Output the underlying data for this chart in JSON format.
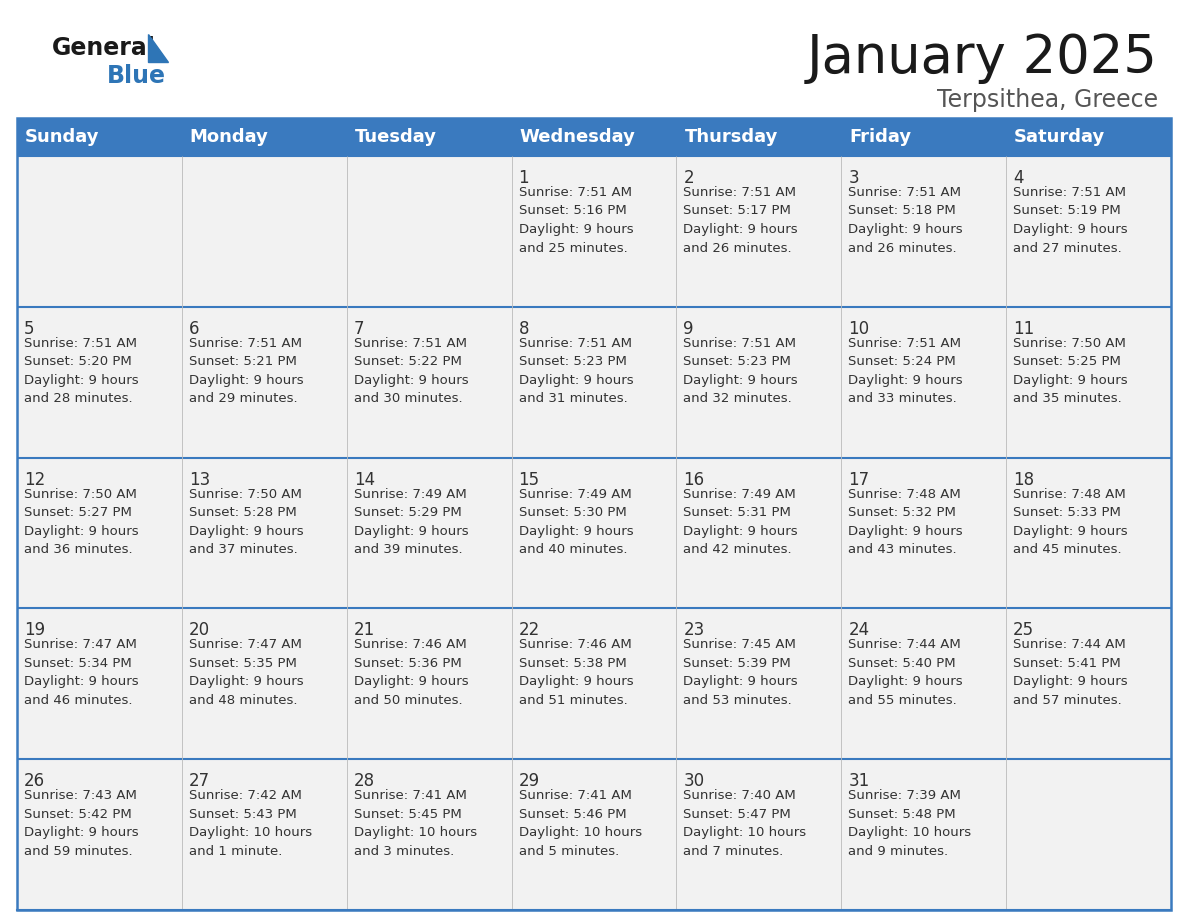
{
  "title": "January 2025",
  "subtitle": "Terpsithea, Greece",
  "header_bg_color": "#3A7ABF",
  "header_text_color": "#FFFFFF",
  "row_bg_color": "#F2F2F2",
  "border_color": "#3A7ABF",
  "border_color_thin": "#AAAAAA",
  "text_color": "#333333",
  "days_of_week": [
    "Sunday",
    "Monday",
    "Tuesday",
    "Wednesday",
    "Thursday",
    "Friday",
    "Saturday"
  ],
  "calendar_data": [
    [
      "",
      "",
      "",
      "1\nSunrise: 7:51 AM\nSunset: 5:16 PM\nDaylight: 9 hours\nand 25 minutes.",
      "2\nSunrise: 7:51 AM\nSunset: 5:17 PM\nDaylight: 9 hours\nand 26 minutes.",
      "3\nSunrise: 7:51 AM\nSunset: 5:18 PM\nDaylight: 9 hours\nand 26 minutes.",
      "4\nSunrise: 7:51 AM\nSunset: 5:19 PM\nDaylight: 9 hours\nand 27 minutes."
    ],
    [
      "5\nSunrise: 7:51 AM\nSunset: 5:20 PM\nDaylight: 9 hours\nand 28 minutes.",
      "6\nSunrise: 7:51 AM\nSunset: 5:21 PM\nDaylight: 9 hours\nand 29 minutes.",
      "7\nSunrise: 7:51 AM\nSunset: 5:22 PM\nDaylight: 9 hours\nand 30 minutes.",
      "8\nSunrise: 7:51 AM\nSunset: 5:23 PM\nDaylight: 9 hours\nand 31 minutes.",
      "9\nSunrise: 7:51 AM\nSunset: 5:23 PM\nDaylight: 9 hours\nand 32 minutes.",
      "10\nSunrise: 7:51 AM\nSunset: 5:24 PM\nDaylight: 9 hours\nand 33 minutes.",
      "11\nSunrise: 7:50 AM\nSunset: 5:25 PM\nDaylight: 9 hours\nand 35 minutes."
    ],
    [
      "12\nSunrise: 7:50 AM\nSunset: 5:27 PM\nDaylight: 9 hours\nand 36 minutes.",
      "13\nSunrise: 7:50 AM\nSunset: 5:28 PM\nDaylight: 9 hours\nand 37 minutes.",
      "14\nSunrise: 7:49 AM\nSunset: 5:29 PM\nDaylight: 9 hours\nand 39 minutes.",
      "15\nSunrise: 7:49 AM\nSunset: 5:30 PM\nDaylight: 9 hours\nand 40 minutes.",
      "16\nSunrise: 7:49 AM\nSunset: 5:31 PM\nDaylight: 9 hours\nand 42 minutes.",
      "17\nSunrise: 7:48 AM\nSunset: 5:32 PM\nDaylight: 9 hours\nand 43 minutes.",
      "18\nSunrise: 7:48 AM\nSunset: 5:33 PM\nDaylight: 9 hours\nand 45 minutes."
    ],
    [
      "19\nSunrise: 7:47 AM\nSunset: 5:34 PM\nDaylight: 9 hours\nand 46 minutes.",
      "20\nSunrise: 7:47 AM\nSunset: 5:35 PM\nDaylight: 9 hours\nand 48 minutes.",
      "21\nSunrise: 7:46 AM\nSunset: 5:36 PM\nDaylight: 9 hours\nand 50 minutes.",
      "22\nSunrise: 7:46 AM\nSunset: 5:38 PM\nDaylight: 9 hours\nand 51 minutes.",
      "23\nSunrise: 7:45 AM\nSunset: 5:39 PM\nDaylight: 9 hours\nand 53 minutes.",
      "24\nSunrise: 7:44 AM\nSunset: 5:40 PM\nDaylight: 9 hours\nand 55 minutes.",
      "25\nSunrise: 7:44 AM\nSunset: 5:41 PM\nDaylight: 9 hours\nand 57 minutes."
    ],
    [
      "26\nSunrise: 7:43 AM\nSunset: 5:42 PM\nDaylight: 9 hours\nand 59 minutes.",
      "27\nSunrise: 7:42 AM\nSunset: 5:43 PM\nDaylight: 10 hours\nand 1 minute.",
      "28\nSunrise: 7:41 AM\nSunset: 5:45 PM\nDaylight: 10 hours\nand 3 minutes.",
      "29\nSunrise: 7:41 AM\nSunset: 5:46 PM\nDaylight: 10 hours\nand 5 minutes.",
      "30\nSunrise: 7:40 AM\nSunset: 5:47 PM\nDaylight: 10 hours\nand 7 minutes.",
      "31\nSunrise: 7:39 AM\nSunset: 5:48 PM\nDaylight: 10 hours\nand 9 minutes.",
      ""
    ]
  ],
  "logo_general_color": "#1a1a1a",
  "logo_blue_color": "#2E75B6",
  "logo_triangle_color": "#2E75B6",
  "title_fontsize": 38,
  "subtitle_fontsize": 17,
  "header_fontsize": 13,
  "day_num_fontsize": 12,
  "cell_fontsize": 9.5,
  "fig_width": 11.88,
  "fig_height": 9.18,
  "dpi": 100
}
